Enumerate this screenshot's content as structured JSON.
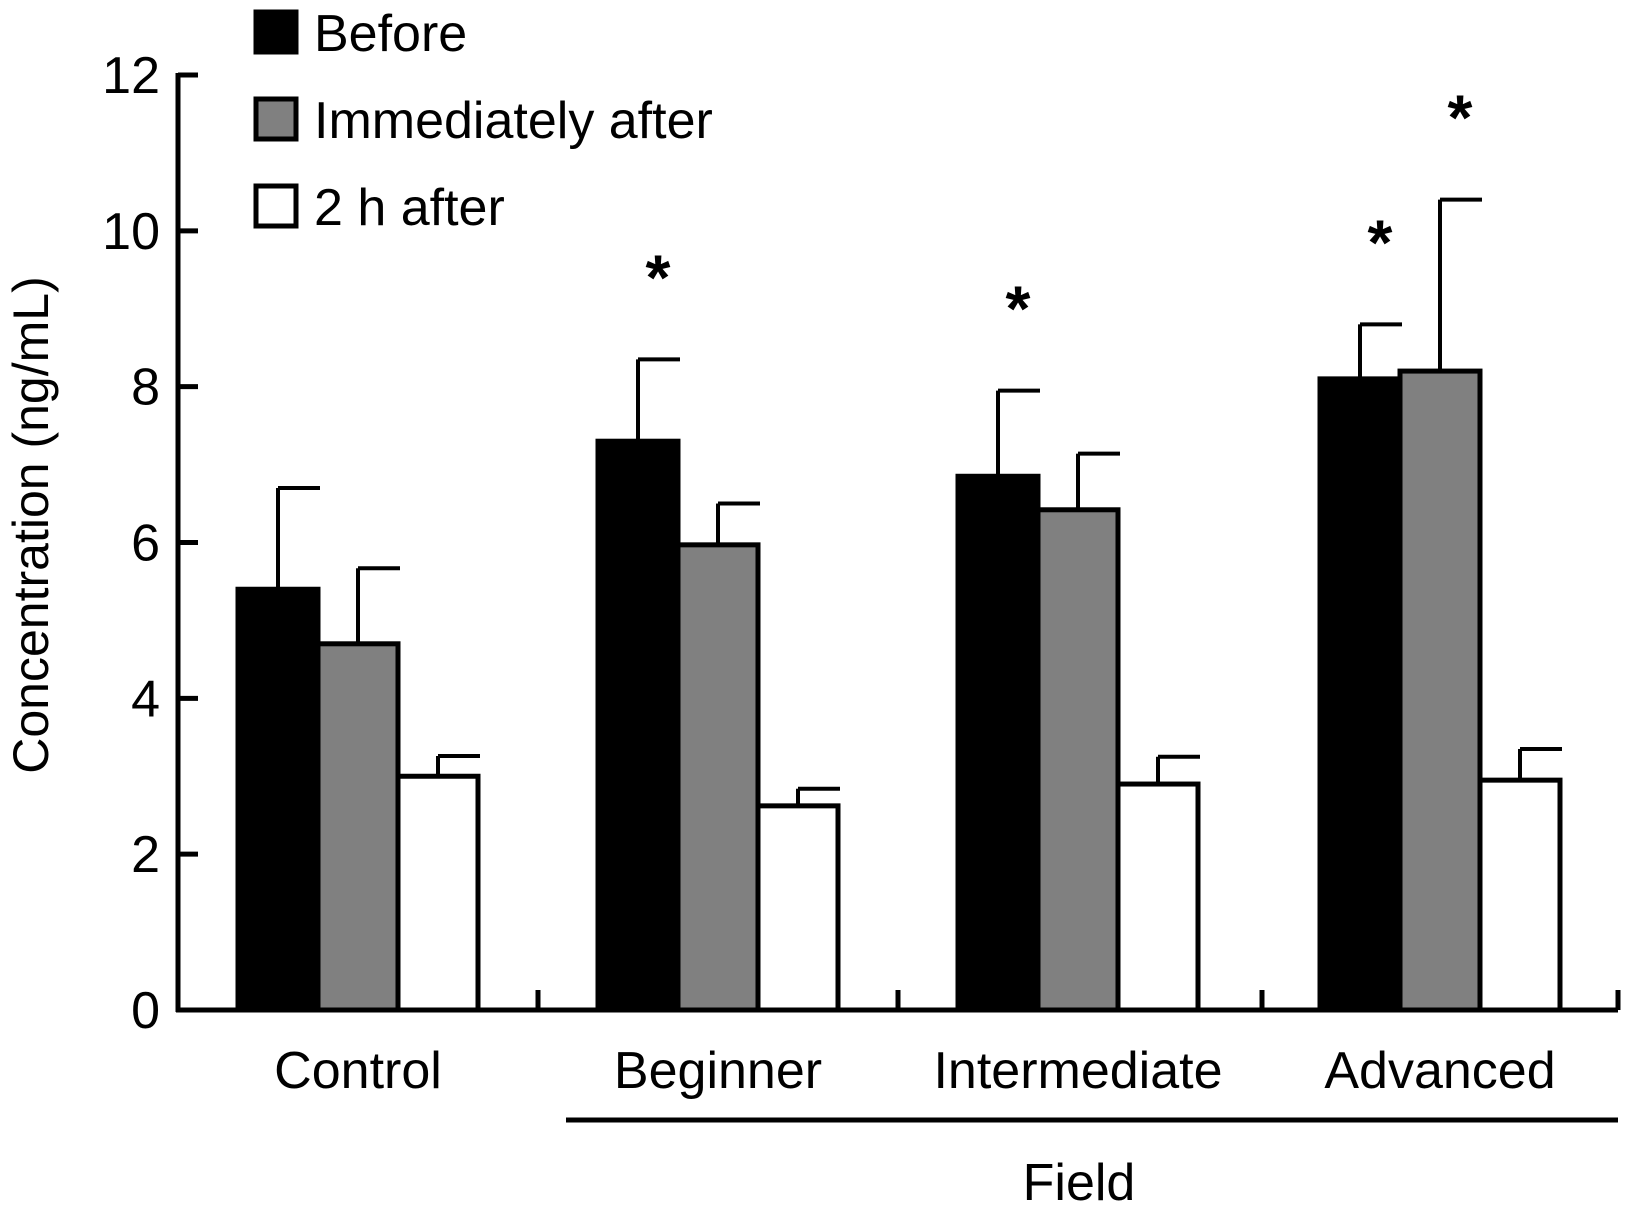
{
  "chart_data": {
    "type": "bar",
    "title": "",
    "ylabel": "Concentration (ng/mL)",
    "xlabel": "",
    "ylim": [
      0,
      12
    ],
    "yticks": [
      0,
      2,
      4,
      6,
      8,
      10,
      12
    ],
    "categories": [
      "Control",
      "Beginner",
      "Intermediate",
      "Advanced"
    ],
    "group_label": {
      "text": "Field",
      "categories": [
        "Beginner",
        "Intermediate",
        "Advanced"
      ]
    },
    "legend_position": "top-left",
    "grid": false,
    "series": [
      {
        "name": "Before",
        "color": "#000000",
        "values": [
          5.4,
          7.3,
          6.85,
          8.1
        ],
        "errors": [
          1.3,
          1.05,
          1.1,
          0.7
        ]
      },
      {
        "name": "Immediately after",
        "color": "#808080",
        "values": [
          4.7,
          5.97,
          6.42,
          8.2
        ],
        "errors": [
          0.97,
          0.53,
          0.72,
          2.2
        ]
      },
      {
        "name": "2 h after",
        "color": "#ffffff",
        "values": [
          3.0,
          2.62,
          2.9,
          2.95
        ],
        "errors": [
          0.26,
          0.22,
          0.35,
          0.4
        ]
      }
    ],
    "annotations": [
      {
        "text": "*",
        "category": "Beginner",
        "series": "Before"
      },
      {
        "text": "*",
        "category": "Intermediate",
        "series": "Before"
      },
      {
        "text": "*",
        "category": "Advanced",
        "series": "Before"
      },
      {
        "text": "*",
        "category": "Advanced",
        "series": "Immediately after"
      }
    ]
  }
}
